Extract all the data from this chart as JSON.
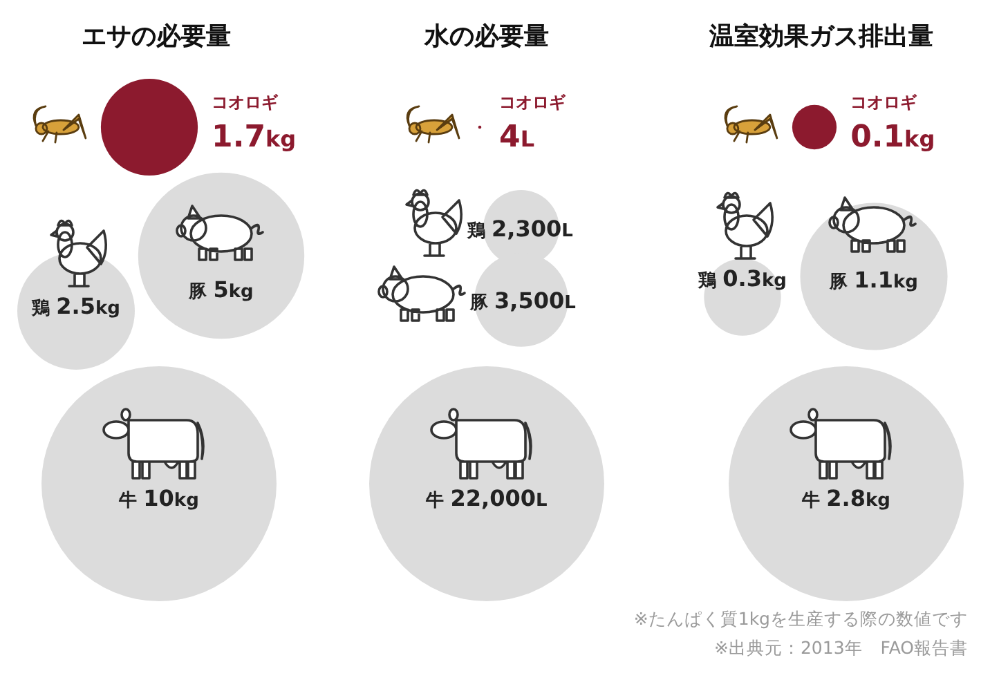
{
  "chart_data": [
    {
      "type": "other",
      "title": "エサの必要量",
      "categories": [
        "コオロギ",
        "鶏",
        "豚",
        "牛"
      ],
      "values": [
        1.7,
        2.5,
        5,
        10
      ],
      "value_labels": [
        "1.7kg",
        "2.5kg",
        "5kg",
        "10kg"
      ],
      "colors": [
        "#8c1a2e",
        "#dcdcdc",
        "#dcdcdc",
        "#dcdcdc"
      ]
    },
    {
      "type": "other",
      "title": "水の必要量",
      "categories": [
        "コオロギ",
        "鶏",
        "豚",
        "牛"
      ],
      "values": [
        4,
        2300,
        3500,
        22000
      ],
      "value_labels": [
        "4L",
        "2,300L",
        "3,500L",
        "22,000L"
      ],
      "colors": [
        "#8c1a2e",
        "#dcdcdc",
        "#dcdcdc",
        "#dcdcdc"
      ]
    },
    {
      "type": "other",
      "title": "温室効果ガス排出量",
      "categories": [
        "コオロギ",
        "鶏",
        "豚",
        "牛"
      ],
      "values": [
        0.1,
        0.3,
        1.1,
        2.8
      ],
      "value_labels": [
        "0.1kg",
        "0.3kg",
        "1.1kg",
        "2.8kg"
      ],
      "colors": [
        "#8c1a2e",
        "#dcdcdc",
        "#dcdcdc",
        "#dcdcdc"
      ],
      "annotations": [
        "※たんぱく質1kgを生産する際の数値です",
        "※出典元：2013年　FAO報告書"
      ]
    }
  ]
}
